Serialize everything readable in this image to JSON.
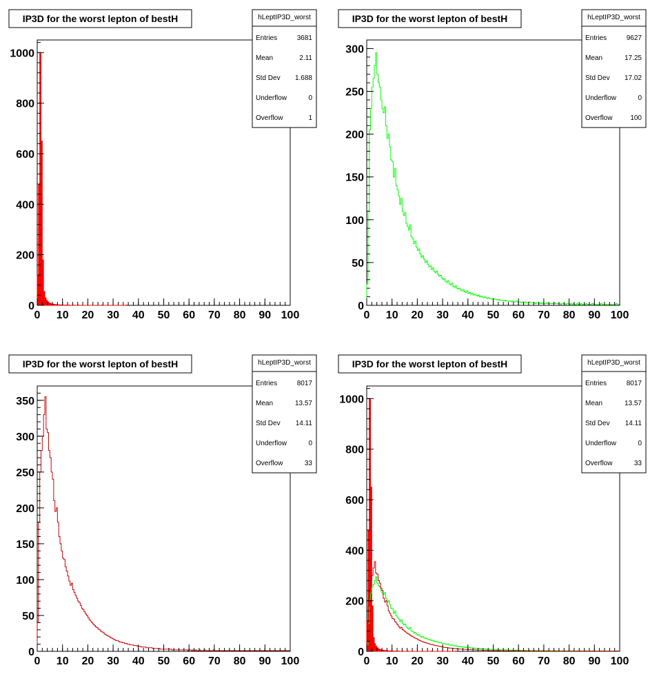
{
  "chart_data": [
    {
      "type": "histogram",
      "title": "IP3D for the worst lepton of bestH",
      "stats": {
        "name": "hLeptIP3D_worst",
        "rows": [
          {
            "label": "Entries",
            "value": "3681"
          },
          {
            "label": "Mean",
            "value": "2.11"
          },
          {
            "label": "Std Dev",
            "value": "1.688"
          },
          {
            "label": "Underflow",
            "value": "0"
          },
          {
            "label": "Overflow",
            "value": "1"
          }
        ]
      },
      "xlim": [
        0,
        100
      ],
      "ylim": [
        0,
        1050
      ],
      "x_ticks": [
        0,
        10,
        20,
        30,
        40,
        50,
        60,
        70,
        80,
        90,
        100
      ],
      "y_ticks": [
        0,
        200,
        400,
        600,
        800,
        1000
      ],
      "bin_width": 0.5,
      "series": [
        {
          "color": "#ff0000",
          "fill": true,
          "values": [
            120,
            480,
            1000,
            650,
            180,
            55,
            30,
            20,
            14,
            10,
            8,
            6,
            5,
            4,
            3,
            3,
            2,
            2,
            2,
            1,
            1,
            1,
            1,
            1,
            0,
            1,
            0,
            0,
            1,
            0,
            0,
            0,
            1,
            0,
            0,
            0,
            0,
            0,
            0,
            0,
            0,
            0,
            0,
            0,
            0,
            0,
            0,
            0,
            0,
            0,
            0,
            1,
            0,
            0,
            0,
            0,
            0,
            0,
            0,
            0,
            0,
            0,
            0,
            0,
            0,
            0,
            0,
            0,
            0,
            0,
            1
          ]
        }
      ]
    },
    {
      "type": "histogram",
      "title": "IP3D for the worst lepton of bestH",
      "stats": {
        "name": "hLeptIP3D_worst",
        "rows": [
          {
            "label": "Entries",
            "value": "9627"
          },
          {
            "label": "Mean",
            "value": "17.25"
          },
          {
            "label": "Std Dev",
            "value": "17.02"
          },
          {
            "label": "Underflow",
            "value": "0"
          },
          {
            "label": "Overflow",
            "value": "100"
          }
        ]
      },
      "xlim": [
        0,
        100
      ],
      "ylim": [
        0,
        310
      ],
      "x_ticks": [
        0,
        10,
        20,
        30,
        40,
        50,
        60,
        70,
        80,
        90,
        100
      ],
      "y_ticks": [
        0,
        50,
        100,
        150,
        200,
        250,
        300
      ],
      "bin_width": 0.5,
      "series": [
        {
          "color": "#00ff00",
          "fill": false,
          "values": [
            25,
            110,
            205,
            230,
            255,
            265,
            280,
            295,
            270,
            260,
            255,
            240,
            230,
            225,
            232,
            210,
            195,
            200,
            185,
            170,
            168,
            150,
            160,
            140,
            135,
            128,
            118,
            125,
            110,
            105,
            108,
            96,
            92,
            88,
            94,
            80,
            78,
            72,
            75,
            68,
            64,
            66,
            60,
            56,
            58,
            54,
            50,
            52,
            48,
            45,
            46,
            42,
            44,
            40,
            38,
            40,
            36,
            34,
            35,
            32,
            30,
            31,
            28,
            27,
            29,
            25,
            24,
            26,
            22,
            21,
            23,
            20,
            19,
            20,
            18,
            17,
            18,
            16,
            15,
            17,
            14,
            15,
            13,
            14,
            12,
            13,
            12,
            11,
            12,
            10,
            11,
            10,
            9,
            10,
            9,
            8,
            9,
            8,
            8,
            7,
            8,
            7,
            7,
            6,
            7,
            6,
            6,
            6,
            5,
            6,
            5,
            5,
            5,
            5,
            4,
            5,
            4,
            4,
            5,
            4,
            4,
            4,
            3,
            4,
            3,
            4,
            3,
            3,
            4,
            3,
            3,
            3,
            3,
            2,
            3,
            3,
            2,
            3,
            2,
            3,
            2,
            2,
            3,
            2,
            2,
            2,
            2,
            2,
            3,
            2,
            2,
            2,
            2,
            1,
            2,
            2,
            2,
            1,
            2,
            2,
            1,
            2,
            1,
            2,
            1,
            1,
            2,
            1,
            1,
            2,
            1,
            1,
            1,
            2,
            1,
            1,
            1,
            1,
            2,
            1,
            1,
            1,
            1,
            1,
            1,
            2,
            1,
            1,
            1,
            1,
            1,
            1,
            1,
            1,
            1,
            1,
            1,
            2,
            1,
            1
          ]
        }
      ]
    },
    {
      "type": "histogram",
      "title": "IP3D for the worst lepton of bestH",
      "stats": {
        "name": "hLeptIP3D_worst",
        "rows": [
          {
            "label": "Entries",
            "value": "8017"
          },
          {
            "label": "Mean",
            "value": "13.57"
          },
          {
            "label": "Std Dev",
            "value": "14.11"
          },
          {
            "label": "Underflow",
            "value": "0"
          },
          {
            "label": "Overflow",
            "value": "33"
          }
        ]
      },
      "xlim": [
        0,
        100
      ],
      "ylim": [
        0,
        370
      ],
      "x_ticks": [
        0,
        10,
        20,
        30,
        40,
        50,
        60,
        70,
        80,
        90,
        100
      ],
      "y_ticks": [
        0,
        50,
        100,
        150,
        200,
        250,
        300,
        350
      ],
      "bin_width": 0.5,
      "series": [
        {
          "color": "#cc0000",
          "fill": false,
          "values": [
            40,
            180,
            250,
            280,
            300,
            330,
            355,
            310,
            305,
            280,
            270,
            250,
            240,
            210,
            195,
            200,
            180,
            160,
            150,
            140,
            130,
            128,
            118,
            112,
            105,
            98,
            92,
            95,
            86,
            82,
            78,
            74,
            70,
            68,
            64,
            60,
            58,
            55,
            52,
            50,
            47,
            44,
            42,
            40,
            38,
            36,
            34,
            33,
            31,
            30,
            28,
            27,
            26,
            24,
            23,
            22,
            21,
            20,
            19,
            18,
            17,
            16,
            15,
            15,
            14,
            13,
            13,
            12,
            12,
            11,
            11,
            10,
            10,
            9,
            9,
            9,
            8,
            8,
            8,
            7,
            7,
            7,
            6,
            6,
            6,
            6,
            5,
            5,
            5,
            5,
            5,
            4,
            4,
            4,
            4,
            4,
            4,
            3,
            3,
            3,
            3,
            3,
            3,
            3,
            3,
            3,
            2,
            2,
            2,
            2,
            2,
            2,
            2,
            2,
            2,
            2,
            2,
            2,
            2,
            1,
            2,
            2,
            1,
            2,
            1,
            2,
            1,
            1,
            2,
            1,
            1,
            1,
            2,
            1,
            1,
            1,
            1,
            1,
            1,
            2,
            1,
            1,
            1,
            1,
            1,
            1,
            1,
            1,
            1,
            1,
            1,
            1,
            1,
            1,
            1,
            1,
            1,
            1,
            1,
            1,
            1,
            1,
            1,
            1,
            1,
            1,
            1,
            1,
            1,
            1,
            1,
            1,
            1,
            1,
            1,
            1,
            1,
            1,
            1,
            1,
            1,
            1,
            1,
            1,
            1,
            1,
            1,
            1,
            1,
            1,
            1,
            1,
            1,
            1,
            1,
            1,
            1,
            1,
            1,
            1
          ]
        }
      ]
    },
    {
      "type": "histogram",
      "title": "IP3D for the worst lepton of bestH",
      "stats": {
        "name": "hLeptIP3D_worst",
        "rows": [
          {
            "label": "Entries",
            "value": "8017"
          },
          {
            "label": "Mean",
            "value": "13.57"
          },
          {
            "label": "Std Dev",
            "value": "14.11"
          },
          {
            "label": "Underflow",
            "value": "0"
          },
          {
            "label": "Overflow",
            "value": "33"
          }
        ]
      },
      "xlim": [
        0,
        100
      ],
      "ylim": [
        0,
        1050
      ],
      "x_ticks": [
        0,
        10,
        20,
        30,
        40,
        50,
        60,
        70,
        80,
        90,
        100
      ],
      "y_ticks": [
        0,
        200,
        400,
        600,
        800,
        1000
      ],
      "bin_width": 0.5,
      "overlay": true,
      "series": [
        {
          "color": "#ff0000",
          "fill": true,
          "ref": 0
        },
        {
          "color": "#00ff00",
          "fill": false,
          "ref": 1
        },
        {
          "color": "#cc0000",
          "fill": false,
          "ref": 2
        }
      ]
    }
  ]
}
